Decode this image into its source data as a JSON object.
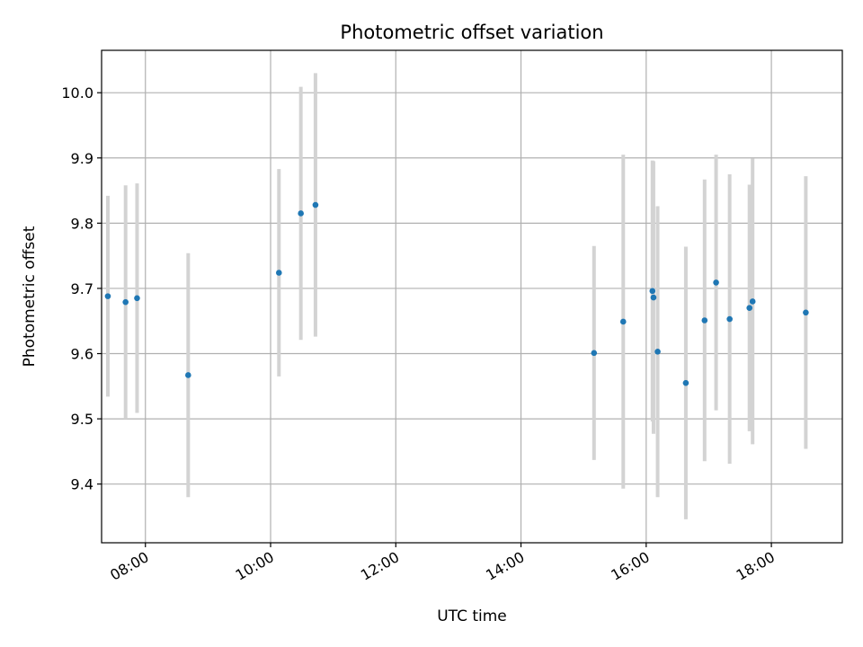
{
  "chart_data": {
    "type": "scatter",
    "title": "Photometric offset variation",
    "xlabel": "UTC time",
    "ylabel": "Photometric offset",
    "xlim": [
      "07:18",
      "19:08"
    ],
    "ylim": [
      9.31,
      10.065
    ],
    "x_ticks": [
      "08:00",
      "10:00",
      "12:00",
      "14:00",
      "16:00",
      "18:00"
    ],
    "y_ticks": [
      9.4,
      9.5,
      9.6,
      9.7,
      9.8,
      9.9,
      10.0
    ],
    "grid": true,
    "colors": {
      "point": "#1f77b4",
      "errorbar": "#d3d3d3",
      "grid": "#b0b0b0"
    },
    "points": [
      {
        "x": "07:24",
        "y": 9.688,
        "yerr": 0.154
      },
      {
        "x": "07:41",
        "y": 9.679,
        "yerr": 0.179
      },
      {
        "x": "07:52",
        "y": 9.685,
        "yerr": 0.176
      },
      {
        "x": "08:41",
        "y": 9.567,
        "yerr": 0.187
      },
      {
        "x": "10:08",
        "y": 9.724,
        "yerr": 0.159
      },
      {
        "x": "10:29",
        "y": 9.815,
        "yerr": 0.194
      },
      {
        "x": "10:43",
        "y": 9.828,
        "yerr": 0.202
      },
      {
        "x": "15:10",
        "y": 9.601,
        "yerr": 0.164
      },
      {
        "x": "15:38",
        "y": 9.649,
        "yerr": 0.256
      },
      {
        "x": "16:06",
        "y": 9.696,
        "yerr": 0.2
      },
      {
        "x": "16:07",
        "y": 9.686,
        "yerr": 0.209
      },
      {
        "x": "16:11",
        "y": 9.603,
        "yerr": 0.223
      },
      {
        "x": "16:38",
        "y": 9.555,
        "yerr": 0.209
      },
      {
        "x": "16:56",
        "y": 9.651,
        "yerr": 0.216
      },
      {
        "x": "17:07",
        "y": 9.709,
        "yerr": 0.196
      },
      {
        "x": "17:20",
        "y": 9.653,
        "yerr": 0.222
      },
      {
        "x": "17:39",
        "y": 9.67,
        "yerr": 0.189
      },
      {
        "x": "17:42",
        "y": 9.68,
        "yerr": 0.219
      },
      {
        "x": "18:33",
        "y": 9.663,
        "yerr": 0.209
      }
    ]
  }
}
